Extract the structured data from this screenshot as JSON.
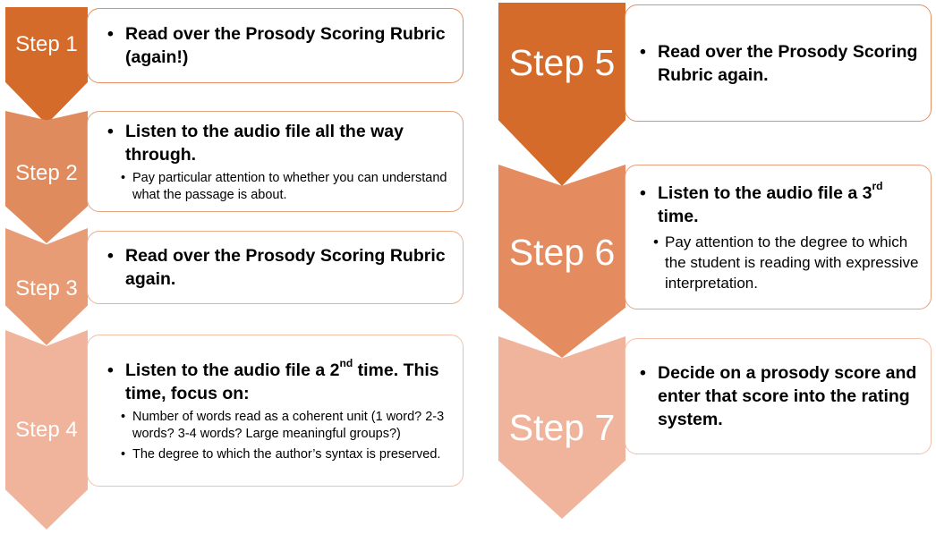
{
  "steps": [
    {
      "id": "step1",
      "label": "Step 1",
      "color": "#D56B2A",
      "border": "#E39160",
      "main_text": "Read over the Prosody Scoring Rubric (again!)",
      "sub_points": []
    },
    {
      "id": "step2",
      "label": "Step 2",
      "color": "#E08B5E",
      "border": "#E8A27E",
      "main_text": "Listen to the audio file all the way through.",
      "sub_points": [
        "Pay particular attention to whether you can understand what the passage is about."
      ]
    },
    {
      "id": "step3",
      "label": "Step 3",
      "color": "#E89C76",
      "border": "#EDAE8E",
      "main_text": "Read over the Prosody Scoring Rubric again.",
      "sub_points": []
    },
    {
      "id": "step4",
      "label": "Step 4",
      "color": "#F0B49C",
      "border": "#F2C0AA",
      "main_text_pre": "Listen to the audio file a 2",
      "main_text_sup": "nd",
      "main_text_post": " time. This time, focus on:",
      "sub_points": [
        "Number of words read as a coherent unit (1 word? 2-3 words? 3-4 words? Large meaningful groups?)",
        "The degree to which the author’s syntax is preserved."
      ]
    },
    {
      "id": "step5",
      "label": "Step 5",
      "color": "#D56B2A",
      "border": "#E39160",
      "main_text": "Read over the Prosody Scoring Rubric again.",
      "sub_points": []
    },
    {
      "id": "step6",
      "label": "Step 6",
      "color": "#E48C60",
      "border": "#E9A17E",
      "main_text_pre": "Listen to the audio file a 3",
      "main_text_sup": "rd",
      "main_text_post": " time.",
      "sub_points": [
        "Pay attention to the degree to which the student is reading with expressive interpretation."
      ]
    },
    {
      "id": "step7",
      "label": "Step 7",
      "color": "#F0B49C",
      "border": "#F2C0AA",
      "main_text": "Decide on a prosody score and enter that score into the rating system.",
      "sub_points": []
    }
  ]
}
